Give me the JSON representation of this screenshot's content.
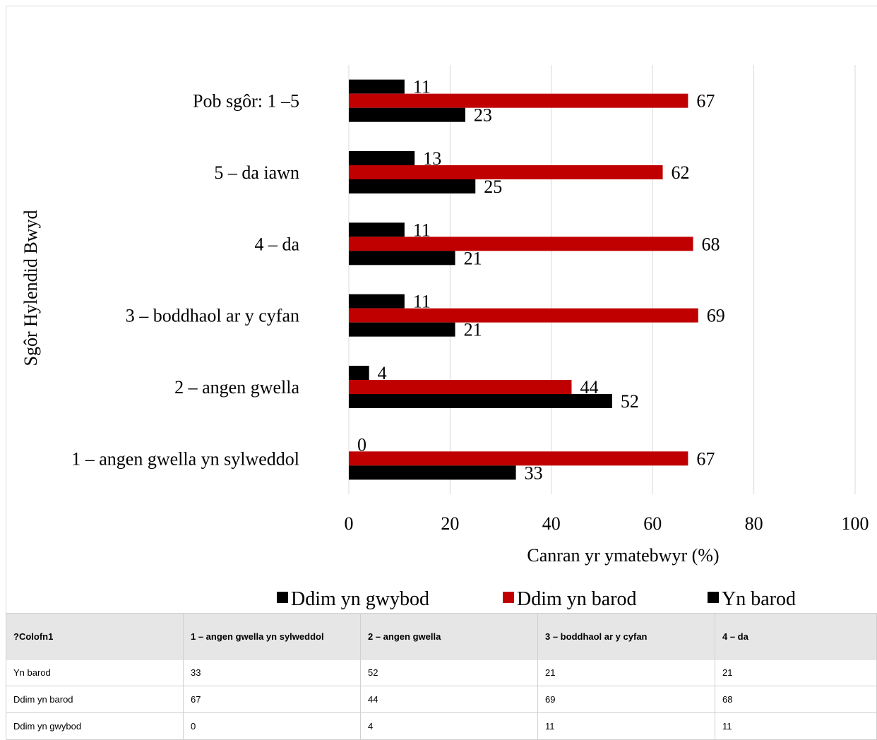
{
  "colors": {
    "black": "#000000",
    "red": "#c00000",
    "grid": "#d9d9d9"
  },
  "chart_data": {
    "type": "bar",
    "orientation": "horizontal",
    "ylabel": "Sgôr Hylendid Bwyd",
    "xlabel": "Canran yr ymatebwyr (%)",
    "xlim": [
      0,
      100
    ],
    "xticks": [
      0,
      20,
      40,
      60,
      80,
      100
    ],
    "grid": true,
    "legend_position": "bottom",
    "categories": [
      "1 – angen gwella yn sylweddol",
      "2 – angen gwella",
      "3 – boddhaol ar y cyfan",
      "4 – da",
      "5 – da iawn",
      "Pob sgôr: 1 –5"
    ],
    "series": [
      {
        "name": "Yn barod",
        "color": "#000000",
        "values": [
          33,
          52,
          21,
          21,
          25,
          23
        ]
      },
      {
        "name": "Ddim yn barod",
        "color": "#c00000",
        "values": [
          67,
          44,
          69,
          68,
          62,
          67
        ]
      },
      {
        "name": "Ddim yn gwybod",
        "color": "#000000",
        "values": [
          0,
          4,
          11,
          11,
          13,
          11
        ]
      }
    ],
    "legend_order": [
      "Ddim yn gwybod",
      "Ddim yn barod",
      "Yn barod"
    ]
  },
  "table": {
    "headers": [
      "?Colofn1",
      "1 – angen gwella yn sylweddol",
      "2 – angen gwella",
      "3 – boddhaol ar y cyfan",
      "4 – da"
    ],
    "rows": [
      [
        "Yn barod",
        "33",
        "52",
        "21",
        "21"
      ],
      [
        "Ddim yn barod",
        "67",
        "44",
        "69",
        "68"
      ],
      [
        "Ddim yn gwybod",
        "0",
        "4",
        "11",
        "11"
      ]
    ]
  }
}
